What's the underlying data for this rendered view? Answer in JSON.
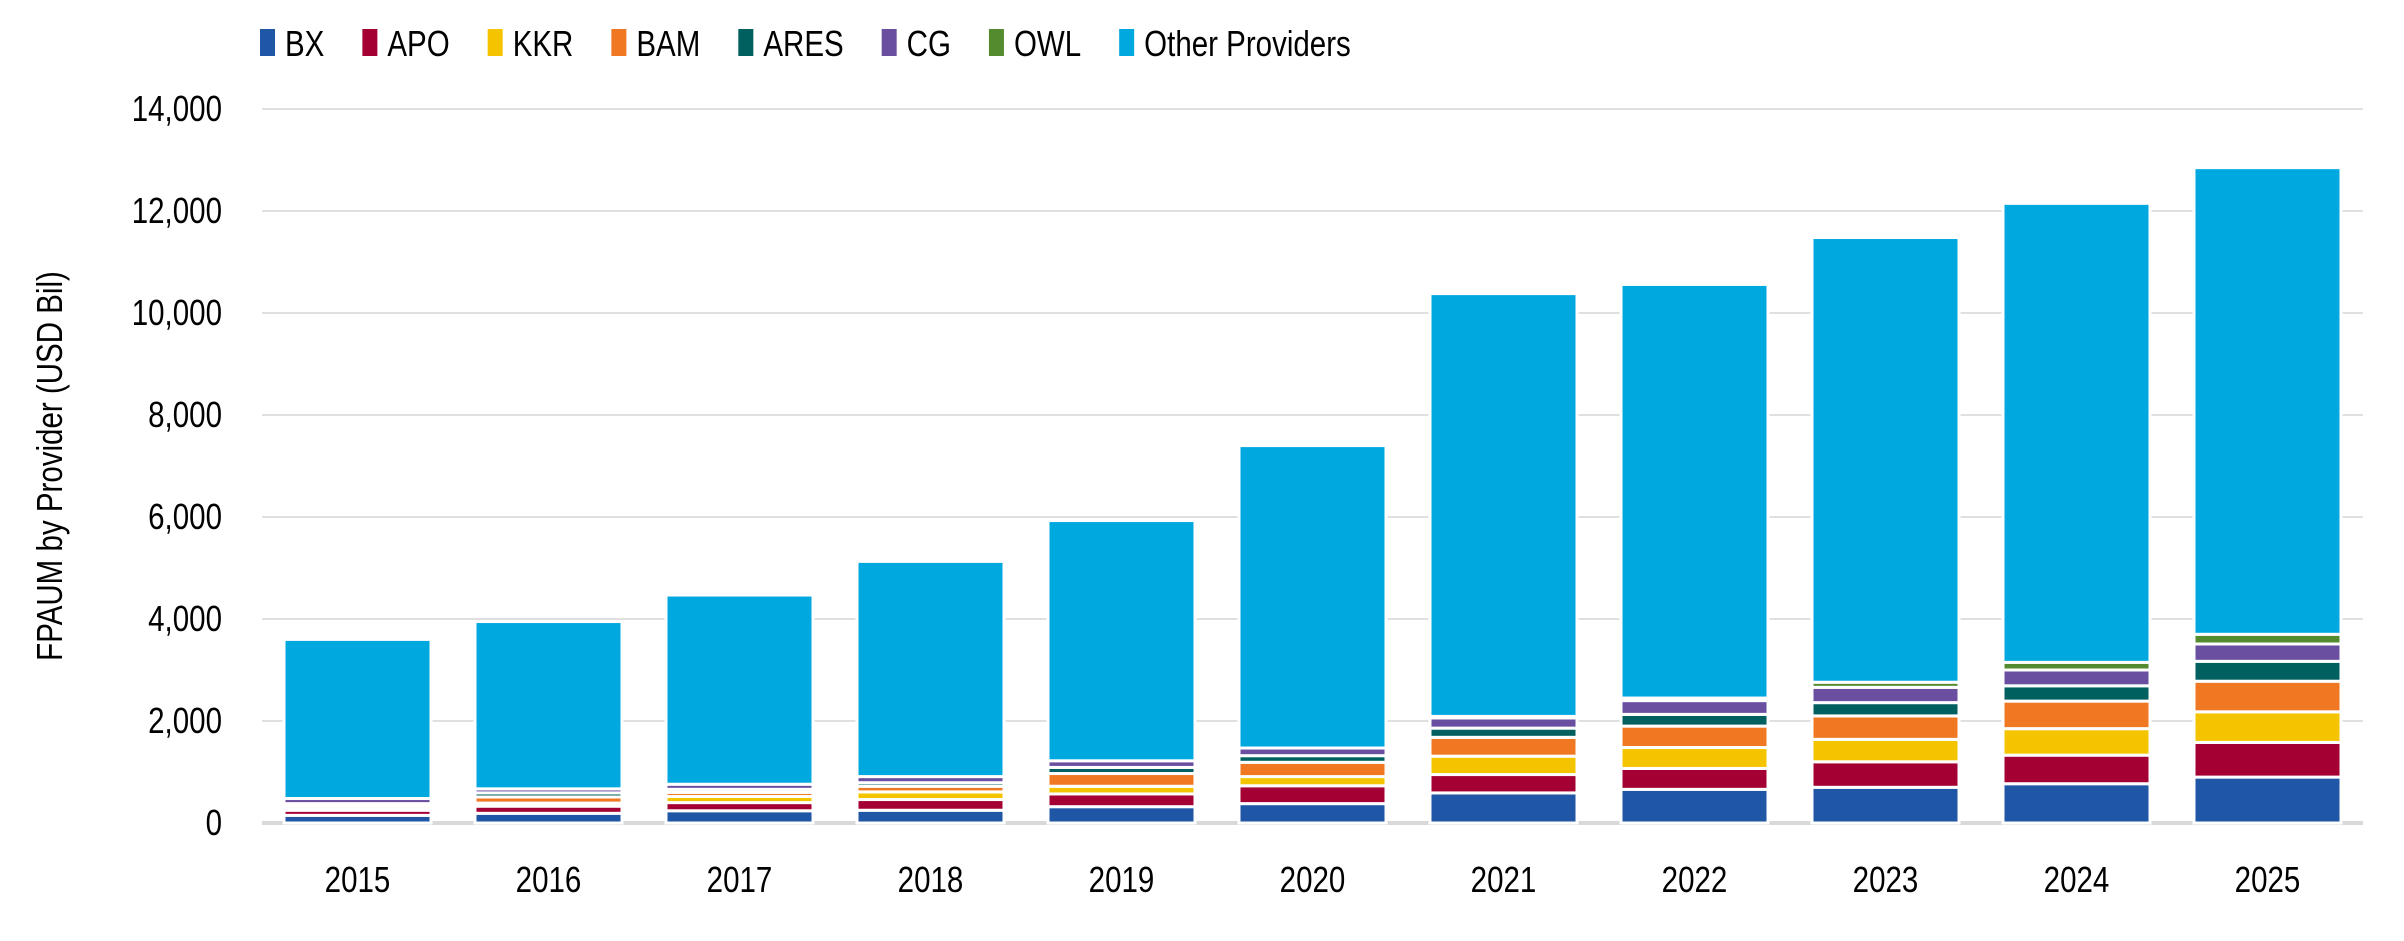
{
  "chart_data": {
    "type": "bar",
    "stacked": true,
    "title": "",
    "xlabel": "",
    "ylabel": "FPAUM by Provider (USD Bil)",
    "ylim": [
      0,
      14000
    ],
    "yticks": [
      0,
      2000,
      4000,
      6000,
      8000,
      10000,
      12000,
      14000
    ],
    "ytick_labels": [
      "0",
      "2,000",
      "4,000",
      "6,000",
      "8,000",
      "10,000",
      "12,000",
      "14,000"
    ],
    "grid": true,
    "legend_position": "top-left",
    "categories": [
      "2015",
      "2016",
      "2017",
      "2018",
      "2019",
      "2020",
      "2021",
      "2022",
      "2023",
      "2024",
      "2025"
    ],
    "series": [
      {
        "name": "BX",
        "color": "#1f56a6",
        "values": [
          150,
          190,
          240,
          250,
          320,
          380,
          590,
          660,
          700,
          770,
          900
        ]
      },
      {
        "name": "APO",
        "color": "#a50034",
        "values": [
          100,
          140,
          160,
          210,
          250,
          350,
          360,
          410,
          500,
          560,
          680
        ]
      },
      {
        "name": "KKR",
        "color": "#f5c400",
        "values": [
          30,
          60,
          120,
          150,
          150,
          180,
          360,
          410,
          440,
          520,
          600
        ]
      },
      {
        "name": "BAM",
        "color": "#f07822",
        "values": [
          60,
          120,
          80,
          110,
          250,
          280,
          370,
          420,
          460,
          540,
          600
        ]
      },
      {
        "name": "ARES",
        "color": "#005f5f",
        "values": [
          40,
          80,
          60,
          70,
          120,
          130,
          180,
          230,
          260,
          300,
          390
        ]
      },
      {
        "name": "CG",
        "color": "#6a4fa0",
        "values": [
          100,
          80,
          100,
          120,
          130,
          150,
          200,
          270,
          300,
          310,
          340
        ]
      },
      {
        "name": "OWL",
        "color": "#558b2f",
        "values": [
          0,
          0,
          0,
          0,
          0,
          0,
          30,
          50,
          100,
          150,
          190
        ]
      },
      {
        "name": "Other Providers",
        "color": "#00a8e0",
        "values": [
          3120,
          3280,
          3710,
          4220,
          4710,
          5930,
          8290,
          8110,
          8720,
          9000,
          9150
        ]
      }
    ]
  }
}
